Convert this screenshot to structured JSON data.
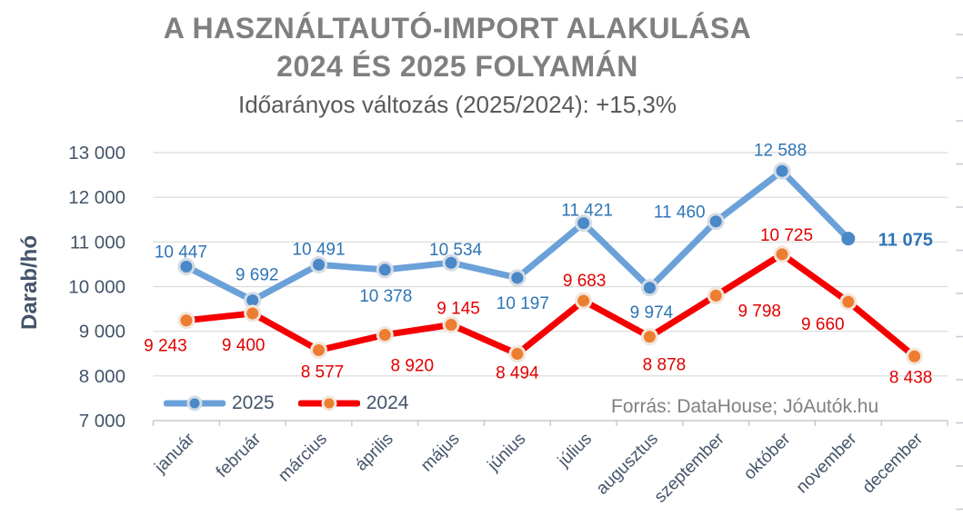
{
  "header": {
    "title_line1": "A HASZNÁLTAUTÓ-IMPORT ALAKULÁSA",
    "title_line2": "2024 ÉS 2025 FOLYAMÁN",
    "subtitle": "Időarányos változás (2025/2024): +15,3%"
  },
  "source_note": "Forrás: DataHouse; JóAutók.hu",
  "colors": {
    "title_gray": "#7F7F7F",
    "subtitle_gray": "#595959",
    "axis_text_navy": "#44546A",
    "grid_gray": "#D9D9D9",
    "axis_line_gray": "#BFBFBF",
    "edge_tick_gray": "#C5CBD3",
    "source_gray": "#808080",
    "background": "#FFFFFF"
  },
  "chart_data": {
    "type": "line",
    "title": "A HASZNÁLTAUTÓ-IMPORT ALAKULÁSA 2024 ÉS 2025 FOLYAMÁN",
    "subtitle": "Időarányos változás (2025/2024): +15,3%",
    "categories": [
      "január",
      "február",
      "március",
      "április",
      "május",
      "június",
      "július",
      "augusztus",
      "szeptember",
      "október",
      "november",
      "december"
    ],
    "yaxis": {
      "title": "Darab/hó",
      "min": 7000,
      "max": 13000,
      "step": 1000,
      "tick_labels": [
        "13 000",
        "12 000",
        "11 000",
        "10 000",
        "9 000",
        "8 000",
        "7 000"
      ]
    },
    "grid": true,
    "legend_position": "bottom-left",
    "series": [
      {
        "name": "2025",
        "line_color": "#6BA1D9",
        "marker_color": "#4A88C8",
        "marker_ring_color": "#D5DCE4",
        "label_color": "#2E75B6",
        "values": [
          10447,
          9692,
          10491,
          10378,
          10534,
          10197,
          11421,
          9974,
          11460,
          12588,
          11075
        ],
        "labels": [
          "10 447",
          "9 692",
          "10 491",
          "10 378",
          "10 534",
          "10 197",
          "11 421",
          "9 974",
          "11 460",
          "12 588",
          "11 075"
        ],
        "label_offsets": [
          [
            -6,
            -10
          ],
          [
            5,
            -22
          ],
          [
            0,
            -11
          ],
          [
            1,
            35
          ],
          [
            5,
            -8
          ],
          [
            6,
            34
          ],
          [
            4,
            -8
          ],
          [
            2,
            33
          ],
          [
            -40,
            -4
          ],
          [
            -2,
            -17
          ],
          [
            63,
            8
          ]
        ],
        "last_label_bold": true,
        "last_marker_plain": true
      },
      {
        "name": "2024",
        "line_color": "#F40000",
        "marker_color": "#ED7D31",
        "marker_ring_color": "#F2E6DA",
        "label_color": "#E30000",
        "values": [
          9243,
          9400,
          8577,
          8920,
          9145,
          8494,
          9683,
          8878,
          9798,
          10725,
          9660,
          8438
        ],
        "labels": [
          "9 243",
          "9 400",
          "8 577",
          "8 920",
          "9 145",
          "8 494",
          "9 683",
          "8 878",
          "9 798",
          "10 725",
          "9 660",
          "8 438"
        ],
        "label_offsets": [
          [
            -23,
            34
          ],
          [
            -10,
            41
          ],
          [
            4,
            30
          ],
          [
            30,
            40
          ],
          [
            8,
            -12
          ],
          [
            0,
            27
          ],
          [
            1,
            -16
          ],
          [
            16,
            37
          ],
          [
            48,
            23
          ],
          [
            5,
            -15
          ],
          [
            -28,
            31
          ],
          [
            -4,
            29
          ]
        ],
        "last_label_bold": false,
        "last_marker_plain": false
      }
    ]
  }
}
